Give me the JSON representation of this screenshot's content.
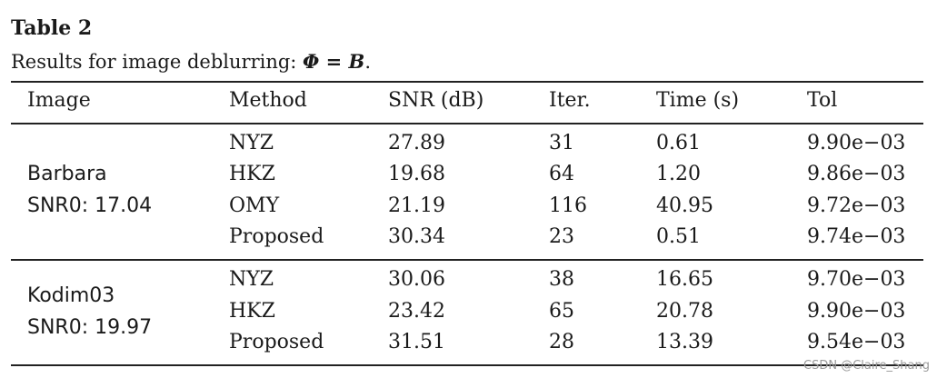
{
  "caption": {
    "label": "Table 2",
    "text_prefix": "Results for image deblurring: ",
    "math": "Φ = B",
    "text_suffix": "."
  },
  "headers": [
    "Image",
    "Method",
    "SNR (dB)",
    "Iter.",
    "Time (s)",
    "Tol"
  ],
  "groups": [
    {
      "image": "Barbara",
      "snr0": "SNR0: 17.04",
      "rows": [
        [
          "NYZ",
          "27.89",
          "31",
          "0.61",
          "9.90e−03"
        ],
        [
          "HKZ",
          "19.68",
          "64",
          "1.20",
          "9.86e−03"
        ],
        [
          "OMY",
          "21.19",
          "116",
          "40.95",
          "9.72e−03"
        ],
        [
          "Proposed",
          "30.34",
          "23",
          "0.51",
          "9.74e−03"
        ]
      ]
    },
    {
      "image": "Kodim03",
      "snr0": "SNR0: 19.97",
      "rows": [
        [
          "NYZ",
          "30.06",
          "38",
          "16.65",
          "9.70e−03"
        ],
        [
          "HKZ",
          "23.42",
          "65",
          "20.78",
          "9.90e−03"
        ],
        [
          "Proposed",
          "31.51",
          "28",
          "13.39",
          "9.54e−03"
        ]
      ]
    }
  ],
  "watermark": "CSDN @Claire_Shang"
}
